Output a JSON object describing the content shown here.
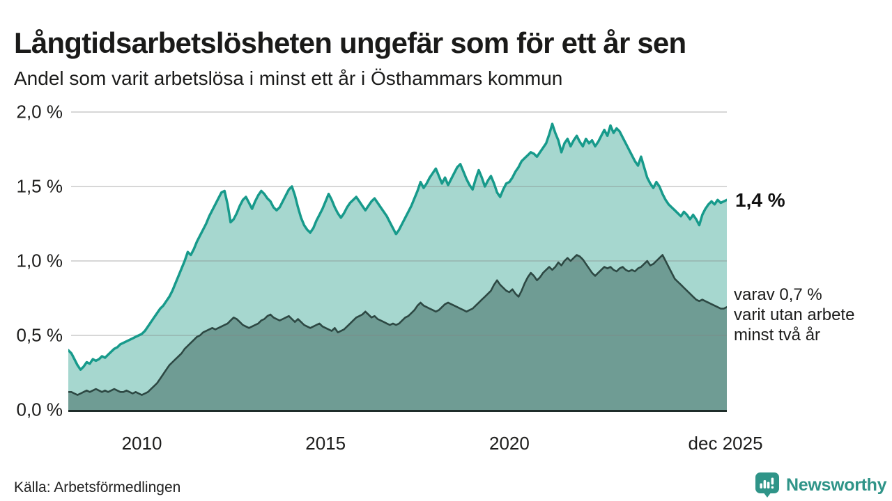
{
  "header": {
    "title": "Långtidsarbetslösheten ungefär som för ett år sen",
    "subtitle": "Andel som varit arbetslösa i minst ett år i Östhammars kommun"
  },
  "annotations": {
    "latest_total": "1,4 %",
    "two_year_lines": [
      "varav 0,7 %",
      "varit utan arbete",
      "minst två år"
    ]
  },
  "footer": {
    "source": "Källa: Arbetsförmedlingen",
    "brand": "Newsworthy"
  },
  "colors": {
    "brand_teal": "#2f9488",
    "line_total": "#179a8b",
    "fill_total": "#a6d7cf",
    "line_two_year": "#2d4843",
    "fill_two_year": "#6f9c94",
    "baseline": "#1f2d2a",
    "gridline": "rgba(130,130,130,0.32)"
  },
  "chart_data": {
    "type": "area",
    "title": "Långtidsarbetslösheten ungefär som för ett år sen",
    "subtitle": "Andel som varit arbetslösa i minst ett år i Östhammars kommun",
    "xlabel": "",
    "ylabel": "",
    "grid": true,
    "legend_position": "right-annotations",
    "xlim": [
      2008.0,
      2025.917
    ],
    "ylim": [
      0,
      2.05
    ],
    "y_ticks": [
      "2,0 %",
      "1,5 %",
      "1,0 %",
      "0,5 %",
      "0,0 %"
    ],
    "y_tick_values": [
      2.0,
      1.5,
      1.0,
      0.5,
      0.0
    ],
    "x_ticks": [
      "2010",
      "2015",
      "2020",
      "dec 2025"
    ],
    "x_tick_years": [
      2010.0,
      2015.0,
      2020.0,
      2025.88
    ],
    "end_labels": [
      {
        "series": "minst ett år",
        "text": "1,4 %",
        "value": 1.4
      },
      {
        "series": "minst två år",
        "text": "varav 0,7 % varit utan arbete minst två år",
        "value": 0.7
      }
    ],
    "series": [
      {
        "name": "Andel arbetslösa minst ett år",
        "color": "#179a8b",
        "fill": "#a6d7cf",
        "stroke_width": 3.5,
        "start": 2008.0,
        "points_per_year": 12,
        "values": [
          0.4,
          0.38,
          0.34,
          0.3,
          0.27,
          0.29,
          0.32,
          0.31,
          0.34,
          0.33,
          0.34,
          0.36,
          0.35,
          0.37,
          0.39,
          0.41,
          0.42,
          0.44,
          0.45,
          0.46,
          0.47,
          0.48,
          0.49,
          0.5,
          0.51,
          0.53,
          0.56,
          0.59,
          0.62,
          0.65,
          0.68,
          0.7,
          0.73,
          0.76,
          0.8,
          0.85,
          0.9,
          0.95,
          1.0,
          1.06,
          1.04,
          1.08,
          1.13,
          1.17,
          1.21,
          1.25,
          1.3,
          1.34,
          1.38,
          1.42,
          1.46,
          1.47,
          1.38,
          1.26,
          1.28,
          1.32,
          1.37,
          1.41,
          1.43,
          1.39,
          1.35,
          1.4,
          1.44,
          1.47,
          1.45,
          1.42,
          1.4,
          1.36,
          1.34,
          1.36,
          1.4,
          1.44,
          1.48,
          1.5,
          1.44,
          1.36,
          1.29,
          1.24,
          1.21,
          1.19,
          1.22,
          1.27,
          1.31,
          1.35,
          1.4,
          1.45,
          1.41,
          1.36,
          1.32,
          1.29,
          1.32,
          1.36,
          1.39,
          1.41,
          1.43,
          1.4,
          1.37,
          1.34,
          1.37,
          1.4,
          1.42,
          1.39,
          1.36,
          1.33,
          1.3,
          1.26,
          1.22,
          1.18,
          1.21,
          1.25,
          1.29,
          1.33,
          1.37,
          1.42,
          1.47,
          1.53,
          1.49,
          1.52,
          1.56,
          1.59,
          1.62,
          1.57,
          1.52,
          1.56,
          1.51,
          1.55,
          1.59,
          1.63,
          1.65,
          1.6,
          1.55,
          1.51,
          1.48,
          1.55,
          1.61,
          1.56,
          1.5,
          1.54,
          1.57,
          1.52,
          1.46,
          1.43,
          1.48,
          1.52,
          1.53,
          1.56,
          1.6,
          1.63,
          1.67,
          1.69,
          1.71,
          1.73,
          1.72,
          1.7,
          1.73,
          1.76,
          1.79,
          1.85,
          1.92,
          1.86,
          1.81,
          1.73,
          1.79,
          1.82,
          1.77,
          1.81,
          1.84,
          1.8,
          1.77,
          1.82,
          1.79,
          1.81,
          1.77,
          1.8,
          1.84,
          1.88,
          1.84,
          1.91,
          1.86,
          1.89,
          1.87,
          1.83,
          1.79,
          1.75,
          1.71,
          1.67,
          1.64,
          1.7,
          1.63,
          1.56,
          1.52,
          1.49,
          1.53,
          1.5,
          1.45,
          1.41,
          1.38,
          1.36,
          1.34,
          1.32,
          1.3,
          1.33,
          1.31,
          1.28,
          1.31,
          1.28,
          1.24,
          1.31,
          1.35,
          1.38,
          1.4,
          1.38,
          1.41,
          1.39,
          1.4,
          1.41
        ]
      },
      {
        "name": "varav arbetslösa minst två år",
        "color": "#2d4843",
        "fill": "#6f9c94",
        "stroke_width": 2.6,
        "start": 2008.0,
        "points_per_year": 12,
        "values": [
          0.12,
          0.12,
          0.11,
          0.1,
          0.11,
          0.12,
          0.13,
          0.12,
          0.13,
          0.14,
          0.13,
          0.12,
          0.13,
          0.12,
          0.13,
          0.14,
          0.13,
          0.12,
          0.12,
          0.13,
          0.12,
          0.11,
          0.12,
          0.11,
          0.1,
          0.11,
          0.12,
          0.14,
          0.16,
          0.18,
          0.21,
          0.24,
          0.27,
          0.3,
          0.32,
          0.34,
          0.36,
          0.38,
          0.41,
          0.43,
          0.45,
          0.47,
          0.49,
          0.5,
          0.52,
          0.53,
          0.54,
          0.55,
          0.54,
          0.55,
          0.56,
          0.57,
          0.58,
          0.6,
          0.62,
          0.61,
          0.59,
          0.57,
          0.56,
          0.55,
          0.56,
          0.57,
          0.58,
          0.6,
          0.61,
          0.63,
          0.64,
          0.62,
          0.61,
          0.6,
          0.61,
          0.62,
          0.63,
          0.61,
          0.59,
          0.61,
          0.59,
          0.57,
          0.56,
          0.55,
          0.56,
          0.57,
          0.58,
          0.56,
          0.55,
          0.54,
          0.53,
          0.55,
          0.52,
          0.53,
          0.54,
          0.56,
          0.58,
          0.6,
          0.62,
          0.63,
          0.64,
          0.66,
          0.64,
          0.62,
          0.63,
          0.61,
          0.6,
          0.59,
          0.58,
          0.57,
          0.58,
          0.57,
          0.58,
          0.6,
          0.62,
          0.63,
          0.65,
          0.67,
          0.7,
          0.72,
          0.7,
          0.69,
          0.68,
          0.67,
          0.66,
          0.67,
          0.69,
          0.71,
          0.72,
          0.71,
          0.7,
          0.69,
          0.68,
          0.67,
          0.66,
          0.67,
          0.68,
          0.7,
          0.72,
          0.74,
          0.76,
          0.78,
          0.8,
          0.84,
          0.87,
          0.84,
          0.82,
          0.8,
          0.79,
          0.81,
          0.78,
          0.76,
          0.8,
          0.85,
          0.89,
          0.92,
          0.9,
          0.87,
          0.89,
          0.92,
          0.94,
          0.96,
          0.94,
          0.96,
          0.99,
          0.97,
          1.0,
          1.02,
          1.0,
          1.02,
          1.04,
          1.03,
          1.01,
          0.98,
          0.95,
          0.92,
          0.9,
          0.92,
          0.94,
          0.96,
          0.95,
          0.96,
          0.94,
          0.93,
          0.95,
          0.96,
          0.94,
          0.93,
          0.94,
          0.93,
          0.95,
          0.96,
          0.98,
          1.0,
          0.97,
          0.98,
          1.0,
          1.02,
          1.04,
          1.0,
          0.96,
          0.92,
          0.88,
          0.86,
          0.84,
          0.82,
          0.8,
          0.78,
          0.76,
          0.74,
          0.73,
          0.74,
          0.73,
          0.72,
          0.71,
          0.7,
          0.69,
          0.68,
          0.68,
          0.69
        ]
      }
    ]
  }
}
